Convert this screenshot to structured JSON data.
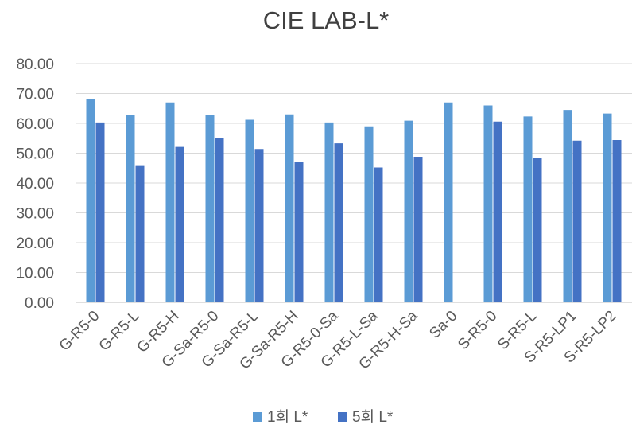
{
  "chart_data": {
    "type": "bar",
    "title": "CIE LAB-L*",
    "categories": [
      "G-R5-0",
      "G-R5-L",
      "G-R5-H",
      "G-Sa-R5-0",
      "G-Sa-R5-L",
      "G-Sa-R5-H",
      "G-R5-0-Sa",
      "G-R5-L-Sa",
      "G-R5-H-Sa",
      "Sa-0",
      "S-R5-0",
      "S-R5-L",
      "S-R5-LP1",
      "S-R5-LP2"
    ],
    "series": [
      {
        "name": "1회 L*",
        "color": "#5b9bd5",
        "values": [
          68.2,
          62.7,
          67.0,
          62.7,
          61.2,
          63.0,
          60.3,
          59.0,
          60.9,
          67.0,
          66.0,
          62.3,
          64.5,
          63.3
        ]
      },
      {
        "name": "5회 L*",
        "color": "#4472c4",
        "values": [
          60.3,
          45.7,
          52.1,
          55.1,
          51.4,
          47.1,
          53.3,
          45.2,
          48.8,
          null,
          60.6,
          48.4,
          54.2,
          54.4
        ]
      }
    ],
    "yticks": [
      "0.00",
      "10.00",
      "20.00",
      "30.00",
      "40.00",
      "50.00",
      "60.00",
      "70.00",
      "80.00"
    ],
    "ylim": [
      0,
      80
    ],
    "grid": true,
    "legend_position": "bottom"
  }
}
